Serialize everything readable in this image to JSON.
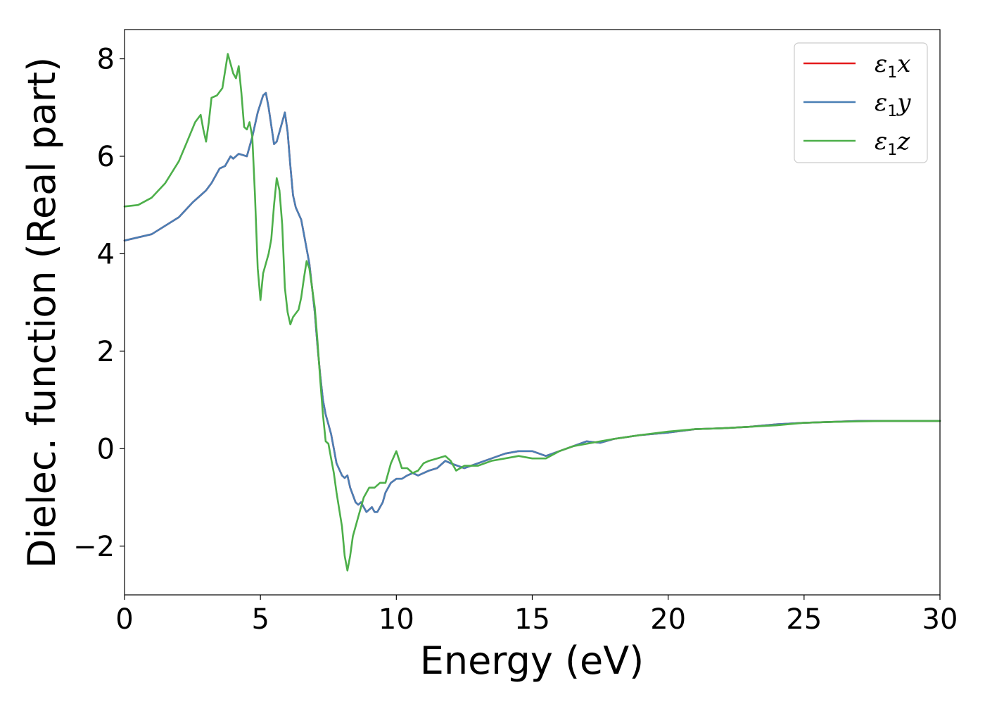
{
  "chart_data": {
    "type": "line",
    "title": "",
    "xlabel": "Energy (eV)",
    "ylabel": "Dielec. function (Real part)",
    "xlim": [
      0,
      30
    ],
    "ylim": [
      -3,
      8.6
    ],
    "xticks": [
      0,
      5,
      10,
      15,
      20,
      25,
      30
    ],
    "xtick_labels": [
      "0",
      "5",
      "10",
      "15",
      "20",
      "25",
      "30"
    ],
    "yticks": [
      -2,
      0,
      2,
      4,
      6,
      8
    ],
    "ytick_labels": [
      "−2",
      "0",
      "2",
      "4",
      "6",
      "8"
    ],
    "grid": false,
    "legend_position": "top-right",
    "series": [
      {
        "name": "ε1x",
        "legend": {
          "base": "ε",
          "sub": "1",
          "comp": "x"
        },
        "color": "#e41a1c",
        "x": [
          0,
          1,
          2,
          2.5,
          2.8,
          3.0,
          3.2,
          3.5,
          3.7,
          3.9,
          4.0,
          4.2,
          4.5,
          4.7,
          4.9,
          5.1,
          5.2,
          5.3,
          5.5,
          5.6,
          5.7,
          5.8,
          5.9,
          6.0,
          6.1,
          6.2,
          6.3,
          6.5,
          6.6,
          6.8,
          6.9,
          7.0,
          7.1,
          7.2,
          7.3,
          7.4,
          7.5,
          7.6,
          7.7,
          7.8,
          8.0,
          8.1,
          8.2,
          8.3,
          8.5,
          8.6,
          8.7,
          8.8,
          8.9,
          9.0,
          9.1,
          9.2,
          9.3,
          9.5,
          9.6,
          9.8,
          10.0,
          10.2,
          10.4,
          10.6,
          10.8,
          11.0,
          11.2,
          11.5,
          11.8,
          12.0,
          12.5,
          13.0,
          13.5,
          14.0,
          14.5,
          15.0,
          15.5,
          16.0,
          16.5,
          17.0,
          17.5,
          18.0,
          19.0,
          20.0,
          21.0,
          22.0,
          23.0,
          24.0,
          25.0,
          26.0,
          27.0,
          28.0,
          29.0,
          30.0
        ],
        "y": [
          4.27,
          4.4,
          4.75,
          5.05,
          5.2,
          5.3,
          5.45,
          5.75,
          5.8,
          6.0,
          5.95,
          6.05,
          6.0,
          6.4,
          6.9,
          7.25,
          7.3,
          7.0,
          6.25,
          6.3,
          6.5,
          6.7,
          6.9,
          6.5,
          5.8,
          5.2,
          4.95,
          4.7,
          4.4,
          3.8,
          3.3,
          2.8,
          2.1,
          1.5,
          1.0,
          0.7,
          0.5,
          0.3,
          0.0,
          -0.3,
          -0.55,
          -0.6,
          -0.55,
          -0.8,
          -1.1,
          -1.15,
          -1.1,
          -1.2,
          -1.3,
          -1.25,
          -1.2,
          -1.3,
          -1.3,
          -1.1,
          -0.9,
          -0.7,
          -0.62,
          -0.62,
          -0.55,
          -0.5,
          -0.55,
          -0.5,
          -0.45,
          -0.4,
          -0.25,
          -0.3,
          -0.4,
          -0.3,
          -0.2,
          -0.1,
          -0.05,
          -0.05,
          -0.15,
          -0.05,
          0.05,
          0.15,
          0.12,
          0.2,
          0.28,
          0.33,
          0.4,
          0.42,
          0.45,
          0.5,
          0.53,
          0.55,
          0.57,
          0.57,
          0.57,
          0.57
        ]
      },
      {
        "name": "ε1y",
        "legend": {
          "base": "ε",
          "sub": "1",
          "comp": "y"
        },
        "color": "#4a7fb5",
        "x": [
          0,
          1,
          2,
          2.5,
          2.8,
          3.0,
          3.2,
          3.5,
          3.7,
          3.9,
          4.0,
          4.2,
          4.5,
          4.7,
          4.9,
          5.1,
          5.2,
          5.3,
          5.5,
          5.6,
          5.7,
          5.8,
          5.9,
          6.0,
          6.1,
          6.2,
          6.3,
          6.5,
          6.6,
          6.8,
          6.9,
          7.0,
          7.1,
          7.2,
          7.3,
          7.4,
          7.5,
          7.6,
          7.7,
          7.8,
          8.0,
          8.1,
          8.2,
          8.3,
          8.5,
          8.6,
          8.7,
          8.8,
          8.9,
          9.0,
          9.1,
          9.2,
          9.3,
          9.5,
          9.6,
          9.8,
          10.0,
          10.2,
          10.4,
          10.6,
          10.8,
          11.0,
          11.2,
          11.5,
          11.8,
          12.0,
          12.5,
          13.0,
          13.5,
          14.0,
          14.5,
          15.0,
          15.5,
          16.0,
          16.5,
          17.0,
          17.5,
          18.0,
          19.0,
          20.0,
          21.0,
          22.0,
          23.0,
          24.0,
          25.0,
          26.0,
          27.0,
          28.0,
          29.0,
          30.0
        ],
        "y": [
          4.27,
          4.4,
          4.75,
          5.05,
          5.2,
          5.3,
          5.45,
          5.75,
          5.8,
          6.0,
          5.95,
          6.05,
          6.0,
          6.4,
          6.9,
          7.25,
          7.3,
          7.0,
          6.25,
          6.3,
          6.5,
          6.7,
          6.9,
          6.5,
          5.8,
          5.2,
          4.95,
          4.7,
          4.4,
          3.8,
          3.3,
          2.8,
          2.1,
          1.5,
          1.0,
          0.7,
          0.5,
          0.3,
          0.0,
          -0.3,
          -0.55,
          -0.6,
          -0.55,
          -0.8,
          -1.1,
          -1.15,
          -1.1,
          -1.2,
          -1.3,
          -1.25,
          -1.2,
          -1.3,
          -1.3,
          -1.1,
          -0.9,
          -0.7,
          -0.62,
          -0.62,
          -0.55,
          -0.5,
          -0.55,
          -0.5,
          -0.45,
          -0.4,
          -0.25,
          -0.3,
          -0.4,
          -0.3,
          -0.2,
          -0.1,
          -0.05,
          -0.05,
          -0.15,
          -0.05,
          0.05,
          0.15,
          0.12,
          0.2,
          0.28,
          0.33,
          0.4,
          0.42,
          0.45,
          0.5,
          0.53,
          0.55,
          0.57,
          0.57,
          0.57,
          0.57
        ]
      },
      {
        "name": "ε1z",
        "legend": {
          "base": "ε",
          "sub": "1",
          "comp": "z"
        },
        "color": "#4daf4a",
        "x": [
          0,
          0.5,
          1,
          1.5,
          2,
          2.3,
          2.6,
          2.8,
          2.9,
          3.0,
          3.1,
          3.2,
          3.4,
          3.6,
          3.8,
          3.9,
          4.0,
          4.1,
          4.2,
          4.3,
          4.4,
          4.5,
          4.6,
          4.7,
          4.8,
          4.9,
          5.0,
          5.1,
          5.2,
          5.3,
          5.4,
          5.5,
          5.6,
          5.7,
          5.8,
          5.9,
          6.0,
          6.1,
          6.2,
          6.4,
          6.5,
          6.6,
          6.7,
          6.8,
          6.9,
          7.0,
          7.1,
          7.2,
          7.3,
          7.4,
          7.5,
          7.6,
          7.7,
          7.8,
          8.0,
          8.1,
          8.2,
          8.3,
          8.4,
          8.6,
          8.8,
          9.0,
          9.2,
          9.4,
          9.6,
          9.8,
          10.0,
          10.2,
          10.4,
          10.6,
          10.8,
          11.0,
          11.2,
          11.5,
          11.8,
          12.0,
          12.2,
          12.5,
          13.0,
          13.5,
          14.0,
          14.5,
          15.0,
          15.5,
          16.0,
          16.5,
          17.0,
          17.5,
          18.0,
          19.0,
          20.0,
          21.0,
          22.0,
          23.0,
          24.0,
          25.0,
          26.0,
          27.0,
          28.0,
          29.0,
          30.0
        ],
        "y": [
          4.97,
          5.0,
          5.15,
          5.45,
          5.9,
          6.3,
          6.7,
          6.85,
          6.55,
          6.3,
          6.7,
          7.2,
          7.25,
          7.4,
          8.1,
          7.9,
          7.7,
          7.6,
          7.85,
          7.3,
          6.6,
          6.55,
          6.7,
          6.4,
          5.2,
          3.7,
          3.05,
          3.6,
          3.8,
          4.0,
          4.3,
          5.0,
          5.55,
          5.3,
          4.6,
          3.3,
          2.8,
          2.55,
          2.7,
          2.85,
          3.1,
          3.5,
          3.85,
          3.7,
          3.3,
          2.9,
          2.2,
          1.4,
          0.7,
          0.15,
          0.1,
          -0.2,
          -0.5,
          -0.9,
          -1.6,
          -2.2,
          -2.5,
          -2.2,
          -1.8,
          -1.4,
          -1.0,
          -0.8,
          -0.8,
          -0.7,
          -0.7,
          -0.3,
          -0.05,
          -0.4,
          -0.4,
          -0.5,
          -0.45,
          -0.3,
          -0.25,
          -0.2,
          -0.15,
          -0.25,
          -0.45,
          -0.35,
          -0.35,
          -0.25,
          -0.2,
          -0.15,
          -0.2,
          -0.2,
          -0.05,
          0.05,
          0.1,
          0.15,
          0.2,
          0.28,
          0.35,
          0.4,
          0.42,
          0.45,
          0.48,
          0.53,
          0.55,
          0.56,
          0.57,
          0.57,
          0.57
        ]
      }
    ]
  }
}
